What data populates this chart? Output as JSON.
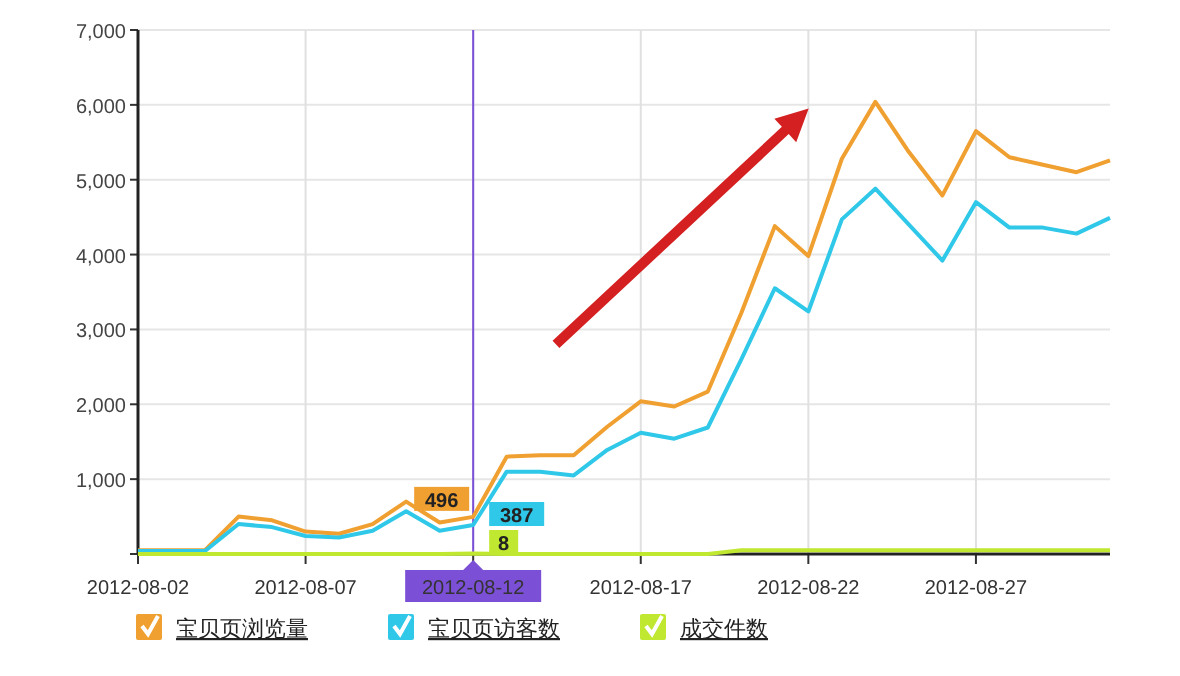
{
  "chart_data": {
    "type": "line",
    "x": [
      "2012-08-02",
      "2012-08-03",
      "2012-08-04",
      "2012-08-05",
      "2012-08-06",
      "2012-08-07",
      "2012-08-08",
      "2012-08-09",
      "2012-08-10",
      "2012-08-11",
      "2012-08-12",
      "2012-08-13",
      "2012-08-14",
      "2012-08-15",
      "2012-08-16",
      "2012-08-17",
      "2012-08-18",
      "2012-08-19",
      "2012-08-20",
      "2012-08-21",
      "2012-08-22",
      "2012-08-23",
      "2012-08-24",
      "2012-08-25",
      "2012-08-26",
      "2012-08-27",
      "2012-08-28",
      "2012-08-29",
      "2012-08-30",
      "2012-08-31"
    ],
    "series": [
      {
        "name": "宝贝页浏览量",
        "color": "#f0a030",
        "values": [
          50,
          50,
          50,
          500,
          450,
          300,
          270,
          400,
          700,
          420,
          496,
          1300,
          1320,
          1320,
          1700,
          2040,
          1970,
          2170,
          3220,
          4380,
          3980,
          5280,
          6040,
          5370,
          4790,
          5650,
          5300,
          5200,
          5100,
          5260
        ],
        "value_labels": [
          null,
          null,
          null,
          null,
          null,
          null,
          null,
          null,
          null,
          null,
          "496",
          null,
          null,
          null,
          null,
          null,
          null,
          null,
          null,
          null,
          null,
          null,
          null,
          null,
          null,
          null,
          null,
          null,
          null,
          null
        ]
      },
      {
        "name": "宝贝页访客数",
        "color": "#30c8e8",
        "values": [
          40,
          40,
          40,
          400,
          360,
          240,
          220,
          310,
          570,
          310,
          387,
          1100,
          1100,
          1050,
          1390,
          1620,
          1540,
          1690,
          2600,
          3550,
          3240,
          4470,
          4880,
          4400,
          3920,
          4700,
          4360,
          4360,
          4280,
          4490
        ],
        "value_labels": [
          null,
          null,
          null,
          null,
          null,
          null,
          null,
          null,
          null,
          null,
          "387",
          null,
          null,
          null,
          null,
          null,
          null,
          null,
          null,
          null,
          null,
          null,
          null,
          null,
          null,
          null,
          null,
          null,
          null,
          null
        ]
      },
      {
        "name": "成交件数",
        "color": "#c0e830",
        "values": [
          0,
          0,
          0,
          0,
          0,
          0,
          0,
          0,
          0,
          0,
          8,
          0,
          0,
          0,
          0,
          0,
          0,
          0,
          50,
          50,
          50,
          50,
          50,
          50,
          50,
          50,
          50,
          50,
          50,
          50
        ],
        "value_labels": [
          null,
          null,
          null,
          null,
          null,
          null,
          null,
          null,
          null,
          null,
          "8",
          null,
          null,
          null,
          null,
          null,
          null,
          null,
          null,
          null,
          null,
          null,
          null,
          null,
          null,
          null,
          null,
          null,
          null,
          null
        ]
      }
    ],
    "xlim": [
      "2012-08-02",
      "2012-08-31"
    ],
    "xticks": [
      "2012-08-02",
      "2012-08-07",
      {
        "value": "2012-08-12",
        "label": "2012-08-12"
      },
      "2012-08-17",
      "2012-08-22",
      "2012-08-27"
    ],
    "ylim": [
      0,
      7000
    ],
    "yticks": [
      {
        "value": 0,
        "label": null
      },
      {
        "value": 1000,
        "label": "1,000"
      },
      {
        "value": 2000,
        "label": "2,000"
      },
      {
        "value": 3000,
        "label": "3,000"
      },
      {
        "value": 4000,
        "label": "4,000"
      },
      {
        "value": 5000,
        "label": "5,000"
      },
      {
        "value": 6000,
        "label": "6,000"
      },
      {
        "value": 7000,
        "label": "7,000"
      }
    ],
    "ref_lines": [
      {
        "axis": "x",
        "value": "2012-08-12",
        "color": "#7b4fd6"
      }
    ],
    "grid": true,
    "legend": "bottom",
    "marker": "none",
    "line_style": "solid"
  }
}
